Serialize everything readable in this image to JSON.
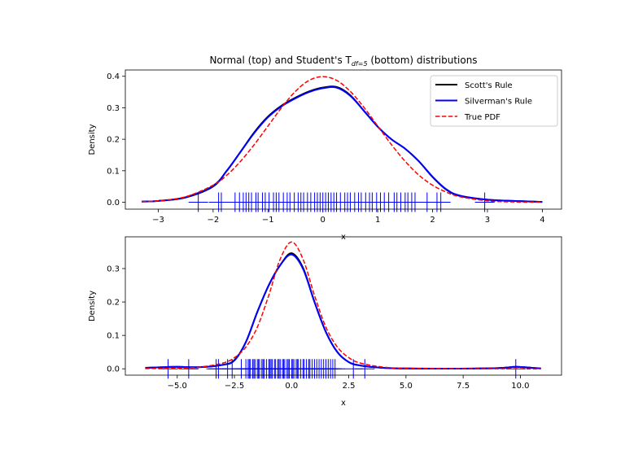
{
  "chart_data": [
    {
      "type": "line",
      "title": "Normal (top) and Student's T",
      "title_subscript": "df=5",
      "title_suffix": " (bottom) distributions",
      "xlabel": "x",
      "ylabel": "Density",
      "xlim": [
        -3.6,
        4.35
      ],
      "ylim": [
        -0.022,
        0.42
      ],
      "xticks": [
        -3,
        -2,
        -1,
        0,
        1,
        2,
        3,
        4
      ],
      "xtick_labels": [
        "−3",
        "−2",
        "−1",
        "0",
        "1",
        "2",
        "3",
        "4"
      ],
      "yticks": [
        0.0,
        0.1,
        0.2,
        0.3,
        0.4
      ],
      "ytick_labels": [
        "0.0",
        "0.1",
        "0.2",
        "0.3",
        "0.4"
      ],
      "legend": {
        "placement": "top-right",
        "entries": [
          "Scott's Rule",
          "Silverman's Rule",
          "True PDF"
        ]
      },
      "series": [
        {
          "name": "Scott's Rule",
          "color": "#000000",
          "style": "solid",
          "x": [
            -3.3,
            -3,
            -2.5,
            -2,
            -1.75,
            -1.5,
            -1.25,
            -1,
            -0.75,
            -0.5,
            -0.25,
            0,
            0.25,
            0.5,
            0.75,
            1,
            1.25,
            1.5,
            1.75,
            2,
            2.25,
            2.5,
            3,
            3.5,
            4
          ],
          "y": [
            0.002,
            0.004,
            0.015,
            0.05,
            0.1,
            0.16,
            0.222,
            0.272,
            0.307,
            0.332,
            0.352,
            0.364,
            0.366,
            0.34,
            0.29,
            0.24,
            0.2,
            0.17,
            0.13,
            0.08,
            0.04,
            0.02,
            0.008,
            0.004,
            0.001
          ]
        },
        {
          "name": "Silverman's Rule",
          "color": "#0000ff",
          "style": "solid",
          "x": [
            -3.3,
            -3,
            -2.5,
            -2,
            -1.75,
            -1.5,
            -1.25,
            -1,
            -0.75,
            -0.5,
            -0.25,
            0,
            0.25,
            0.5,
            0.75,
            1,
            1.25,
            1.5,
            1.75,
            2,
            2.25,
            2.5,
            3,
            3.5,
            4
          ],
          "y": [
            0.002,
            0.004,
            0.016,
            0.052,
            0.1,
            0.16,
            0.22,
            0.27,
            0.305,
            0.33,
            0.35,
            0.362,
            0.364,
            0.338,
            0.29,
            0.24,
            0.2,
            0.17,
            0.13,
            0.081,
            0.041,
            0.021,
            0.008,
            0.004,
            0.001
          ]
        },
        {
          "name": "True PDF",
          "color": "#ff0000",
          "style": "dashed",
          "x": [
            -3.3,
            -3,
            -2.5,
            -2,
            -1.75,
            -1.5,
            -1.25,
            -1,
            -0.75,
            -0.5,
            -0.25,
            0,
            0.25,
            0.5,
            0.75,
            1,
            1.25,
            1.5,
            1.75,
            2,
            2.25,
            2.5,
            3,
            3.5,
            4
          ],
          "y": [
            0.0017,
            0.0044,
            0.0175,
            0.054,
            0.086,
            0.13,
            0.183,
            0.242,
            0.301,
            0.352,
            0.387,
            0.399,
            0.387,
            0.352,
            0.301,
            0.242,
            0.183,
            0.13,
            0.086,
            0.054,
            0.032,
            0.0175,
            0.0044,
            0.0009,
            0.0001
          ]
        }
      ],
      "rug": {
        "color": "#0000ff",
        "marker": "+",
        "values": [
          -2.27,
          -1.9,
          -1.85,
          -1.6,
          -1.52,
          -1.45,
          -1.4,
          -1.35,
          -1.3,
          -1.22,
          -1.18,
          -1.1,
          -1.05,
          -0.98,
          -0.9,
          -0.85,
          -0.8,
          -0.72,
          -0.65,
          -0.6,
          -0.52,
          -0.45,
          -0.4,
          -0.35,
          -0.28,
          -0.22,
          -0.15,
          -0.1,
          -0.05,
          0.0,
          0.05,
          0.1,
          0.15,
          0.2,
          0.25,
          0.32,
          0.4,
          0.45,
          0.5,
          0.58,
          0.65,
          0.7,
          0.78,
          0.85,
          0.9,
          0.98,
          1.05,
          1.12,
          1.2,
          1.3,
          1.35,
          1.42,
          1.5,
          1.55,
          1.62,
          1.68,
          1.9,
          2.08,
          2.15,
          2.95
        ]
      }
    },
    {
      "type": "line",
      "xlabel": "x",
      "ylabel": "Density",
      "xlim": [
        -7.27,
        11.8
      ],
      "ylim": [
        -0.019,
        0.395
      ],
      "xticks": [
        -5,
        -2.5,
        0,
        2.5,
        5,
        7.5,
        10
      ],
      "xtick_labels": [
        "−5.0",
        "−2.5",
        "0.0",
        "2.5",
        "5.0",
        "7.5",
        "10.0"
      ],
      "yticks": [
        0.0,
        0.1,
        0.2,
        0.3
      ],
      "ytick_labels": [
        "0.0",
        "0.1",
        "0.2",
        "0.3"
      ],
      "series": [
        {
          "name": "Scott's Rule",
          "color": "#000000",
          "style": "solid",
          "x": [
            -6.4,
            -5.5,
            -5,
            -4,
            -3,
            -2.5,
            -2,
            -1.5,
            -1,
            -0.5,
            0,
            0.5,
            1,
            1.5,
            2,
            2.5,
            3,
            4,
            5,
            7,
            9,
            9.8,
            10.5,
            10.9
          ],
          "y": [
            0.003,
            0.005,
            0.006,
            0.005,
            0.012,
            0.026,
            0.08,
            0.17,
            0.25,
            0.31,
            0.346,
            0.302,
            0.2,
            0.11,
            0.05,
            0.02,
            0.01,
            0.003,
            0.001,
            0.0005,
            0.002,
            0.006,
            0.003,
            0.001
          ]
        },
        {
          "name": "Silverman's Rule",
          "color": "#0000ff",
          "style": "solid",
          "x": [
            -6.4,
            -5.5,
            -5,
            -4,
            -3,
            -2.5,
            -2,
            -1.5,
            -1,
            -0.5,
            0,
            0.5,
            1,
            1.5,
            2,
            2.5,
            3,
            4,
            5,
            7,
            9,
            9.8,
            10.5,
            10.9
          ],
          "y": [
            0.003,
            0.005,
            0.006,
            0.005,
            0.012,
            0.025,
            0.08,
            0.17,
            0.25,
            0.31,
            0.342,
            0.299,
            0.2,
            0.11,
            0.05,
            0.02,
            0.01,
            0.003,
            0.001,
            0.0005,
            0.002,
            0.006,
            0.003,
            0.001
          ]
        },
        {
          "name": "True PDF",
          "color": "#ff0000",
          "style": "dashed",
          "x": [
            -6.4,
            -5,
            -4,
            -3,
            -2.5,
            -2,
            -1.5,
            -1,
            -0.5,
            0,
            0.5,
            1,
            1.5,
            2,
            2.5,
            3,
            4,
            5,
            7,
            10,
            10.9
          ],
          "y": [
            0.0005,
            0.0018,
            0.0051,
            0.0173,
            0.0333,
            0.0651,
            0.1245,
            0.2197,
            0.328,
            0.3796,
            0.328,
            0.2197,
            0.1245,
            0.0651,
            0.0333,
            0.0173,
            0.0051,
            0.0018,
            0.0003,
            4e-05,
            3e-05
          ]
        }
      ],
      "rug": {
        "color": "#0000ff",
        "marker": "+",
        "values": [
          -5.4,
          -4.5,
          -3.3,
          -3.2,
          -2.8,
          -2.6,
          -2.2,
          -2.0,
          -1.9,
          -1.85,
          -1.8,
          -1.7,
          -1.65,
          -1.6,
          -1.5,
          -1.45,
          -1.4,
          -1.3,
          -1.25,
          -1.2,
          -1.1,
          -1.0,
          -0.95,
          -0.9,
          -0.85,
          -0.75,
          -0.7,
          -0.6,
          -0.55,
          -0.5,
          -0.4,
          -0.35,
          -0.3,
          -0.2,
          -0.15,
          -0.1,
          0.0,
          0.05,
          0.1,
          0.2,
          0.25,
          0.3,
          0.4,
          0.5,
          0.55,
          0.65,
          0.75,
          0.8,
          0.9,
          1.0,
          1.1,
          1.2,
          1.3,
          1.4,
          1.5,
          1.6,
          1.7,
          1.8,
          1.9,
          2.7,
          3.2,
          9.8
        ]
      }
    }
  ]
}
